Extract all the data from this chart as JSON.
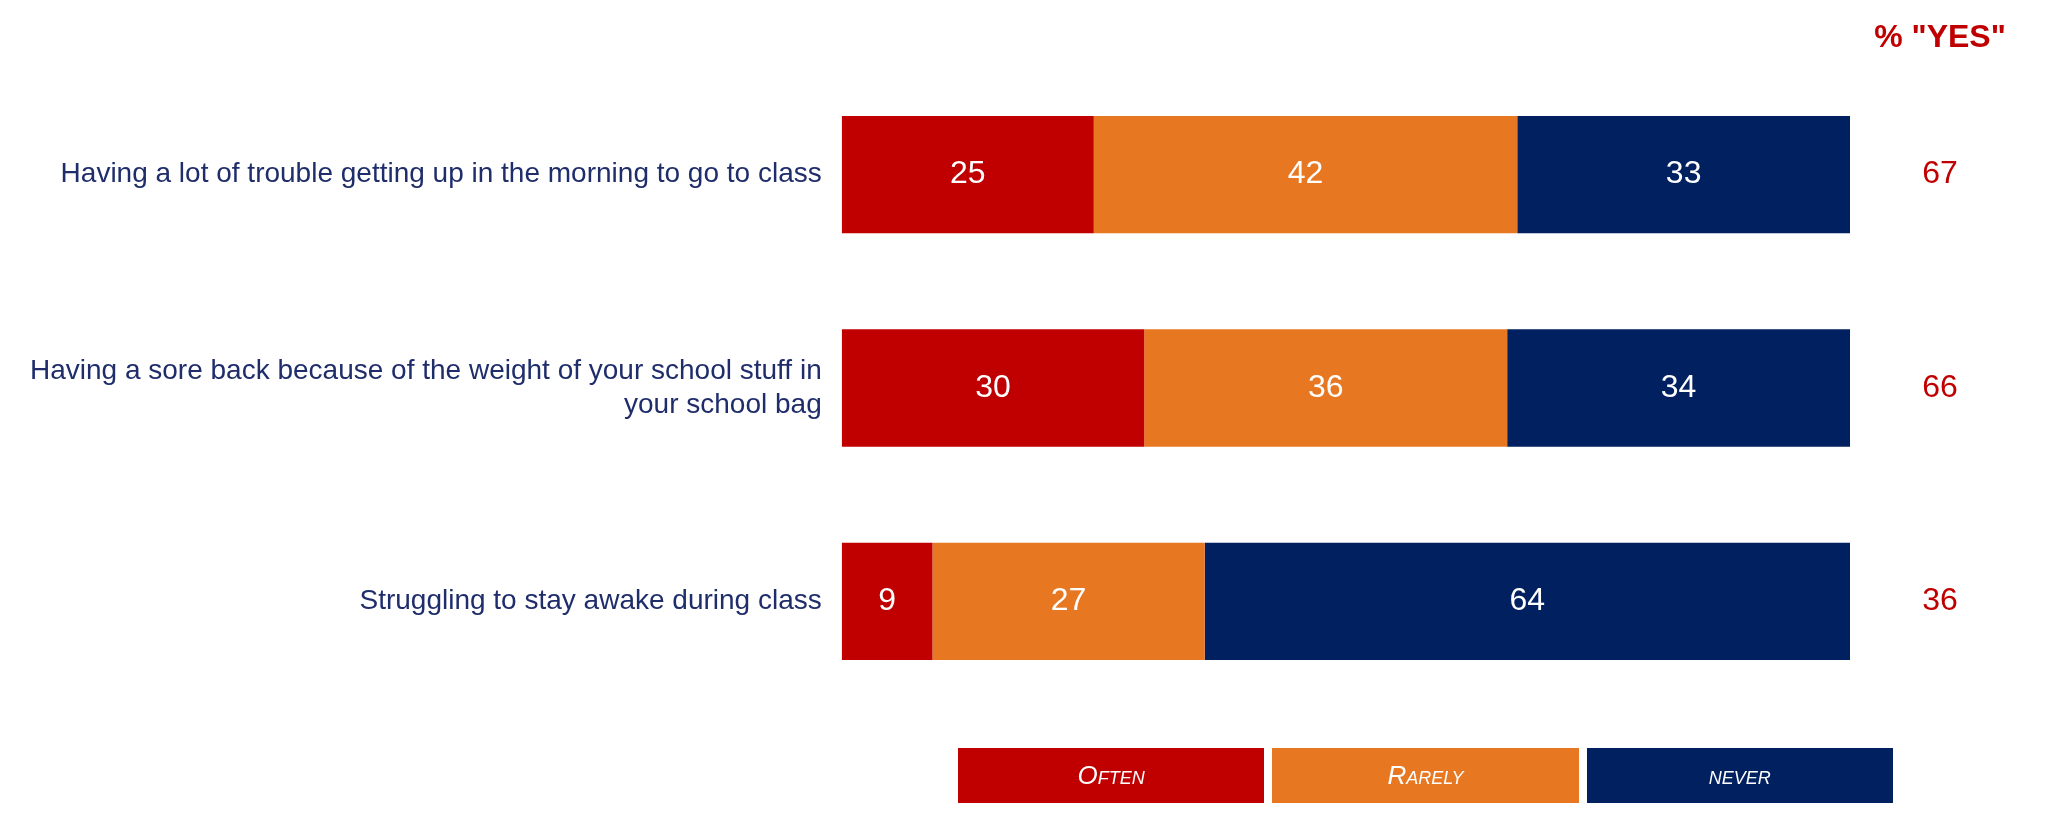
{
  "chart_data": {
    "type": "bar",
    "orientation": "horizontal",
    "stacked": true,
    "categories": [
      "Having a lot of trouble getting up in the morning to go to class",
      "Having a sore back because of the weight of your school stuff in your school bag",
      "Struggling to stay awake during class"
    ],
    "series": [
      {
        "name": "Often",
        "color": "#c00000",
        "values": [
          25,
          30,
          9
        ]
      },
      {
        "name": "Rarely",
        "color": "#e87722",
        "values": [
          42,
          36,
          27
        ]
      },
      {
        "name": "never",
        "color": "#002060",
        "values": [
          33,
          34,
          64
        ]
      }
    ],
    "tick_labels": "y",
    "grid": false,
    "data_labels": true,
    "legend": "bottom",
    "annotations": [
      "% \"YES\"",
      "67",
      "66",
      "36"
    ]
  }
}
